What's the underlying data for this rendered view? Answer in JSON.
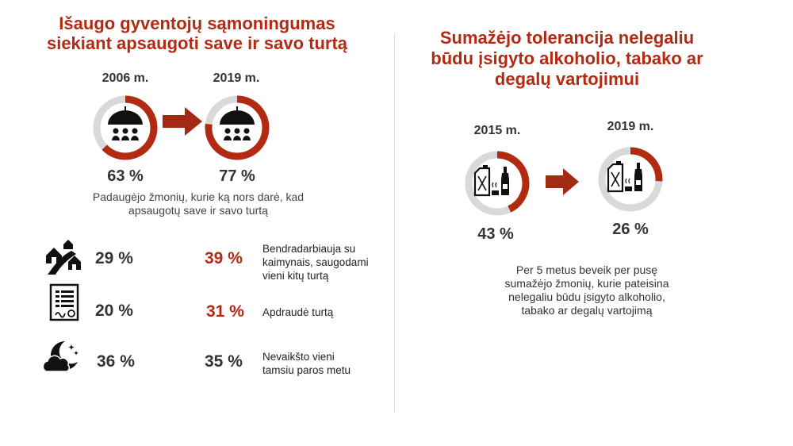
{
  "left": {
    "title_line1": "Išaugo gyventojų sąmoningumas",
    "title_line2": "siekiant apsaugoti save ir savo turtą",
    "year_a": "2006 m.",
    "year_b": "2019 m.",
    "value_a": 0.63,
    "value_b": 0.77,
    "pct_a": "63 %",
    "pct_b": "77 %",
    "desc_line1": "Padaugėjo žmonių, kurie ką nors darė, kad",
    "desc_line2": "apsaugotų save ir savo turtą",
    "rows": [
      {
        "icon": "houses-road-icon",
        "pct_old": "29 %",
        "pct_new": "39 %",
        "label_lines": [
          "Bendradarbiauja su",
          "kaimynais, saugodami",
          "vieni kitų turtą"
        ]
      },
      {
        "icon": "document-icon",
        "pct_old": "20 %",
        "pct_new": "31 %",
        "label_lines": [
          "Apdraudė turtą"
        ]
      },
      {
        "icon": "moon-cloud-icon",
        "pct_old": "36 %",
        "pct_new": "35 %",
        "label_lines": [
          "Nevaikšto vieni",
          "tamsiu paros metu"
        ]
      }
    ]
  },
  "right": {
    "title_line1": "Sumažėjo tolerancija nelegaliu",
    "title_line2": "būdu įsigyto alkoholio, tabako ar",
    "title_line3": "degalų vartojimui",
    "year_a": "2015 m.",
    "year_b": "2019 m.",
    "value_a": 0.43,
    "value_b": 0.26,
    "pct_a": "43 %",
    "pct_b": "26 %",
    "desc_lines": [
      "Per 5 metus beveik per pusę",
      "sumažėjo žmonių, kurie pateisina",
      "nelegaliu būdu įsigyto alkoholio,",
      "tabako ar degalų vartojimą"
    ]
  },
  "colors": {
    "accent": "#b22a12",
    "ring_gray": "#d9d9d9",
    "text": "#333333"
  }
}
